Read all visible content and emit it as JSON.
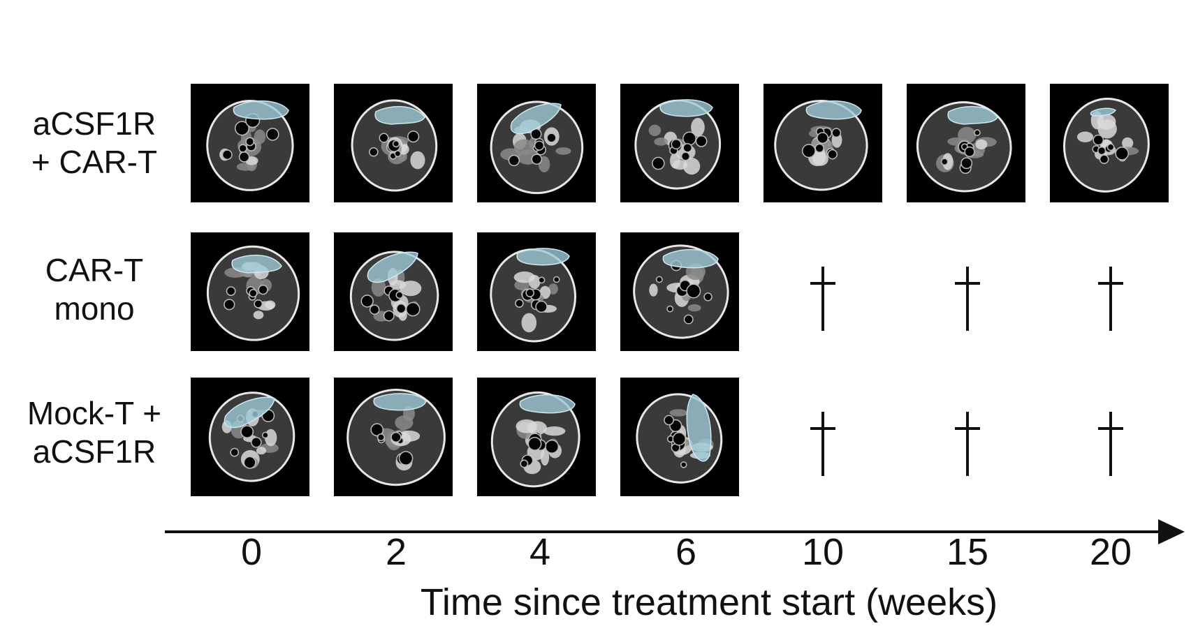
{
  "rows": [
    {
      "label": "aCSF1R\n+ CAR-T"
    },
    {
      "label": "CAR-T\nmono"
    },
    {
      "label": "Mock-T +\naCSF1R"
    }
  ],
  "timepoints": [
    "0",
    "2",
    "4",
    "6",
    "10",
    "15",
    "20"
  ],
  "axis_title": "Time since treatment start (weeks)",
  "colors": {
    "tumor_overlay": "#9ec9d6",
    "scan_background": "#000000",
    "marks": "#111111"
  },
  "grid": [
    [
      "scan",
      "scan",
      "scan",
      "scan",
      "scan",
      "scan",
      "scan"
    ],
    [
      "scan",
      "scan",
      "scan",
      "scan",
      "dagger",
      "dagger",
      "dagger"
    ],
    [
      "scan",
      "scan",
      "scan",
      "scan",
      "dagger",
      "dagger",
      "dagger"
    ]
  ]
}
